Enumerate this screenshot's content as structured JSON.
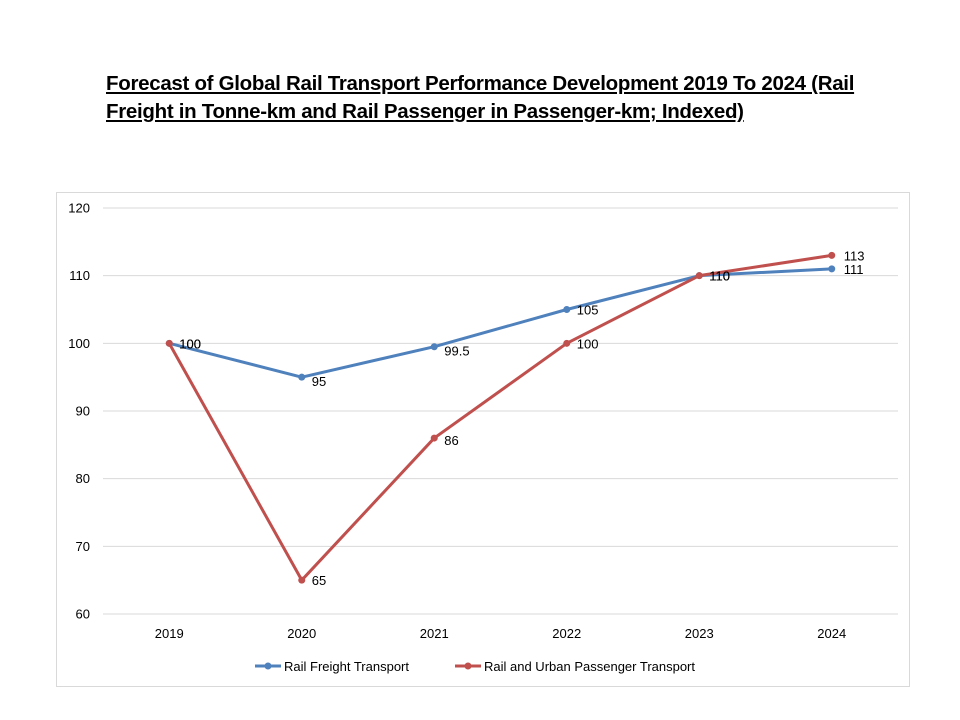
{
  "chart_data": {
    "type": "line",
    "title_lines": [
      "Forecast of Global Rail Transport Performance Development 2019 To 2024 (Rail",
      "Freight in Tonne-km and Rail Passenger in Passenger-km; Indexed)"
    ],
    "title": "Forecast of Global Rail Transport Performance Development 2019 To 2024 (Rail Freight in Tonne-km and Rail Passenger in Passenger-km; Indexed)",
    "xlabel": "",
    "ylabel": "",
    "categories": [
      "2019",
      "2020",
      "2021",
      "2022",
      "2023",
      "2024"
    ],
    "ylim": [
      60,
      120
    ],
    "yticks": [
      60,
      70,
      80,
      90,
      100,
      110,
      120
    ],
    "grid": true,
    "legend_position": "bottom",
    "series": [
      {
        "name": "Rail Freight Transport",
        "color": "#4f81bd",
        "values": [
          100,
          95,
          99.5,
          105,
          110,
          111
        ],
        "labels": [
          "100",
          "95",
          "99.5",
          "105",
          "110",
          "111"
        ]
      },
      {
        "name": "Rail and Urban Passenger Transport",
        "color": "#c0504d",
        "values": [
          100,
          65,
          86,
          100,
          110,
          113
        ],
        "labels": [
          "100",
          "65",
          "86",
          "100",
          "110",
          "113"
        ]
      }
    ]
  }
}
